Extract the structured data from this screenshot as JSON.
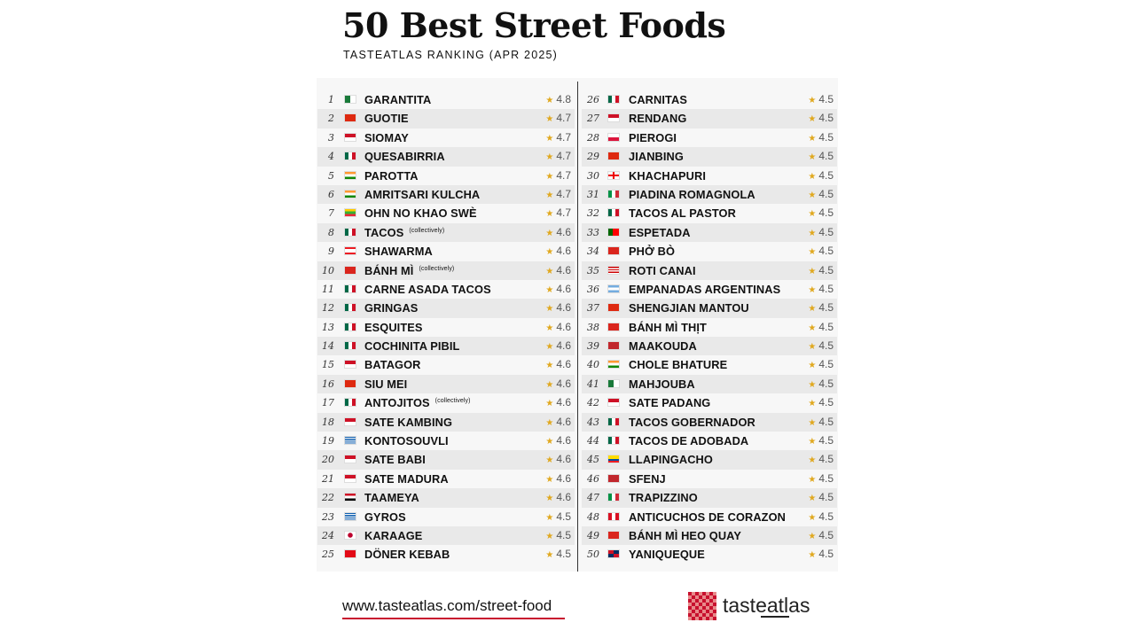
{
  "header": {
    "title": "50 Best Street Foods",
    "subtitle": "TASTEATLAS RANKING (APR 2025)"
  },
  "accent_colors": {
    "star": "#e0a81e",
    "url_underline": "#c8102e",
    "logo_red": "#c8102e"
  },
  "left_column": [
    {
      "rank": "1",
      "flag": "dz",
      "name": "GARANTITA",
      "note": "",
      "rating": "4.8"
    },
    {
      "rank": "2",
      "flag": "cn",
      "name": "GUOTIE",
      "note": "",
      "rating": "4.7"
    },
    {
      "rank": "3",
      "flag": "id",
      "name": "SIOMAY",
      "note": "",
      "rating": "4.7"
    },
    {
      "rank": "4",
      "flag": "mx",
      "name": "QUESABIRRIA",
      "note": "",
      "rating": "4.7"
    },
    {
      "rank": "5",
      "flag": "in",
      "name": "PAROTTA",
      "note": "",
      "rating": "4.7"
    },
    {
      "rank": "6",
      "flag": "in",
      "name": "AMRITSARI KULCHA",
      "note": "",
      "rating": "4.7"
    },
    {
      "rank": "7",
      "flag": "mm",
      "name": "OHN NO KHAO SWÈ",
      "note": "",
      "rating": "4.7"
    },
    {
      "rank": "8",
      "flag": "mx",
      "name": "TACOS",
      "note": "(collectively)",
      "rating": "4.6"
    },
    {
      "rank": "9",
      "flag": "lb",
      "name": "SHAWARMA",
      "note": "",
      "rating": "4.6"
    },
    {
      "rank": "10",
      "flag": "vn",
      "name": "BÁNH MÌ",
      "note": "(collectively)",
      "rating": "4.6"
    },
    {
      "rank": "11",
      "flag": "mx",
      "name": "CARNE ASADA TACOS",
      "note": "",
      "rating": "4.6"
    },
    {
      "rank": "12",
      "flag": "mx",
      "name": "GRINGAS",
      "note": "",
      "rating": "4.6"
    },
    {
      "rank": "13",
      "flag": "mx",
      "name": "ESQUITES",
      "note": "",
      "rating": "4.6"
    },
    {
      "rank": "14",
      "flag": "mx",
      "name": "COCHINITA PIBIL",
      "note": "",
      "rating": "4.6"
    },
    {
      "rank": "15",
      "flag": "id",
      "name": "BATAGOR",
      "note": "",
      "rating": "4.6"
    },
    {
      "rank": "16",
      "flag": "cn",
      "name": "SIU MEI",
      "note": "",
      "rating": "4.6"
    },
    {
      "rank": "17",
      "flag": "mx",
      "name": "ANTOJITOS",
      "note": "(collectively)",
      "rating": "4.6"
    },
    {
      "rank": "18",
      "flag": "id",
      "name": "SATE KAMBING",
      "note": "",
      "rating": "4.6"
    },
    {
      "rank": "19",
      "flag": "gr",
      "name": "KONTOSOUVLI",
      "note": "",
      "rating": "4.6"
    },
    {
      "rank": "20",
      "flag": "id",
      "name": "SATE BABI",
      "note": "",
      "rating": "4.6"
    },
    {
      "rank": "21",
      "flag": "id",
      "name": "SATE MADURA",
      "note": "",
      "rating": "4.6"
    },
    {
      "rank": "22",
      "flag": "eg",
      "name": "TAAMEYA",
      "note": "",
      "rating": "4.6"
    },
    {
      "rank": "23",
      "flag": "gr",
      "name": "GYROS",
      "note": "",
      "rating": "4.5"
    },
    {
      "rank": "24",
      "flag": "jp",
      "name": "KARAAGE",
      "note": "",
      "rating": "4.5"
    },
    {
      "rank": "25",
      "flag": "tr",
      "name": "DÖNER KEBAB",
      "note": "",
      "rating": "4.5"
    }
  ],
  "right_column": [
    {
      "rank": "26",
      "flag": "mx",
      "name": "CARNITAS",
      "note": "",
      "rating": "4.5"
    },
    {
      "rank": "27",
      "flag": "id",
      "name": "RENDANG",
      "note": "",
      "rating": "4.5"
    },
    {
      "rank": "28",
      "flag": "pl",
      "name": "PIEROGI",
      "note": "",
      "rating": "4.5"
    },
    {
      "rank": "29",
      "flag": "cn",
      "name": "JIANBING",
      "note": "",
      "rating": "4.5"
    },
    {
      "rank": "30",
      "flag": "ge",
      "name": "KHACHAPURI",
      "note": "",
      "rating": "4.5"
    },
    {
      "rank": "31",
      "flag": "it",
      "name": "PIADINA ROMAGNOLA",
      "note": "",
      "rating": "4.5"
    },
    {
      "rank": "32",
      "flag": "mx",
      "name": "TACOS AL PASTOR",
      "note": "",
      "rating": "4.5"
    },
    {
      "rank": "33",
      "flag": "pt",
      "name": "ESPETADA",
      "note": "",
      "rating": "4.5"
    },
    {
      "rank": "34",
      "flag": "vn",
      "name": "PHỞ BÒ",
      "note": "",
      "rating": "4.5"
    },
    {
      "rank": "35",
      "flag": "my",
      "name": "ROTI CANAI",
      "note": "",
      "rating": "4.5"
    },
    {
      "rank": "36",
      "flag": "ar",
      "name": "EMPANADAS ARGENTINAS",
      "note": "",
      "rating": "4.5"
    },
    {
      "rank": "37",
      "flag": "cn",
      "name": "SHENGJIAN MANTOU",
      "note": "",
      "rating": "4.5"
    },
    {
      "rank": "38",
      "flag": "vn",
      "name": "BÁNH MÌ THỊT",
      "note": "",
      "rating": "4.5"
    },
    {
      "rank": "39",
      "flag": "ma",
      "name": "MAAKOUDA",
      "note": "",
      "rating": "4.5"
    },
    {
      "rank": "40",
      "flag": "in",
      "name": "CHOLE BHATURE",
      "note": "",
      "rating": "4.5"
    },
    {
      "rank": "41",
      "flag": "dz",
      "name": "MAHJOUBA",
      "note": "",
      "rating": "4.5"
    },
    {
      "rank": "42",
      "flag": "id",
      "name": "SATE PADANG",
      "note": "",
      "rating": "4.5"
    },
    {
      "rank": "43",
      "flag": "mx",
      "name": "TACOS GOBERNADOR",
      "note": "",
      "rating": "4.5"
    },
    {
      "rank": "44",
      "flag": "mx",
      "name": "TACOS DE ADOBADA",
      "note": "",
      "rating": "4.5"
    },
    {
      "rank": "45",
      "flag": "ec",
      "name": "LLAPINGACHO",
      "note": "",
      "rating": "4.5"
    },
    {
      "rank": "46",
      "flag": "ma",
      "name": "SFENJ",
      "note": "",
      "rating": "4.5"
    },
    {
      "rank": "47",
      "flag": "it",
      "name": "TRAPIZZINO",
      "note": "",
      "rating": "4.5"
    },
    {
      "rank": "48",
      "flag": "pe",
      "name": "ANTICUCHOS DE CORAZON",
      "note": "",
      "rating": "4.5"
    },
    {
      "rank": "49",
      "flag": "vn",
      "name": "BÁNH MÌ HEO QUAY",
      "note": "",
      "rating": "4.5"
    },
    {
      "rank": "50",
      "flag": "do",
      "name": "YANIQUEQUE",
      "note": "",
      "rating": "4.5"
    }
  ],
  "footer": {
    "url": "www.tasteatlas.com/street-food",
    "logo_prefix": "taste",
    "logo_suffix": "atlas"
  }
}
